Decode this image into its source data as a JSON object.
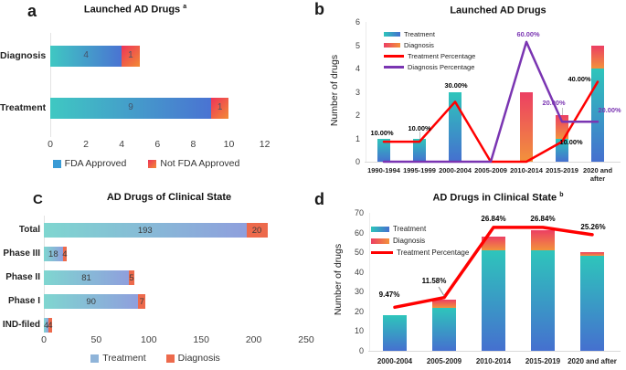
{
  "colors": {
    "red_line": "#ff0000",
    "purple_line": "#7a35b2",
    "bar_teal_top": "#2ec5bb",
    "bar_blue_bottom": "#4570cf",
    "bar_pink_top": "#ec3f63",
    "bar_orange_bottom": "#f2923c",
    "a_treat_left": "#3fc8c2",
    "a_treat_right": "#4a73d2",
    "a_not_left": "#ee3359",
    "a_not_right": "#f28b35",
    "c_treat_left": "#7fd6d0",
    "c_treat_right": "#8f9fdd",
    "c_diag": "#ed6a4c",
    "legend_a_fda": "#3a9bd5",
    "legend_c_treat": "#8fb4d9",
    "value_label": "#44546a",
    "axis_gray": "#d9d9d9"
  },
  "chart_data": [
    {
      "panel_label": "a",
      "type": "bar",
      "orientation": "horizontal",
      "title": "Launched AD Drugs",
      "title_superscript": "a",
      "categories": [
        "Diagnosis",
        "Treatment"
      ],
      "series": [
        {
          "name": "FDA Approved",
          "values": [
            4,
            9
          ]
        },
        {
          "name": "Not FDA Approved",
          "values": [
            1,
            1
          ]
        }
      ],
      "xlim": [
        0,
        12
      ],
      "xticks": [
        0,
        2,
        4,
        6,
        8,
        10,
        12
      ],
      "legend_position": "bottom"
    },
    {
      "panel_label": "b",
      "type": "combo-bar-line",
      "title": "Launched AD Drugs",
      "ylabel": "Number of drugs",
      "ylim": [
        0,
        6
      ],
      "yticks": [
        0,
        1,
        2,
        3,
        4,
        5,
        6
      ],
      "categories": [
        "1990-1994",
        "1995-1999",
        "2000-2004",
        "2005-2009",
        "2010-2014",
        "2015-2019",
        "2020 and after"
      ],
      "bar_series": [
        {
          "name": "Treatment",
          "values": [
            1,
            1,
            3,
            0,
            0,
            1,
            4
          ]
        },
        {
          "name": "Diagnosis",
          "values": [
            0,
            0,
            0,
            0,
            3,
            1,
            1
          ]
        }
      ],
      "line_series": [
        {
          "name": "Treatment Percentage",
          "color": "#ff0000",
          "label_color": "#000000",
          "percent": [
            10,
            10,
            30,
            0,
            0,
            10,
            40
          ],
          "point_labels": [
            "10.00%",
            "10.00%",
            "30.00%",
            "",
            "",
            "10.00%",
            "40.00%"
          ]
        },
        {
          "name": "Diagnosis Percentage",
          "color": "#7a35b2",
          "label_color": "#7a35b2",
          "percent": [
            0,
            0,
            0,
            0,
            60,
            20,
            20
          ],
          "point_labels": [
            "",
            "",
            "",
            "",
            "60.00%",
            "20.00%",
            "20.00%"
          ]
        }
      ],
      "secondary_axis_pct_range": [
        0,
        70
      ],
      "legend_position": "top-left-inside"
    },
    {
      "panel_label": "C",
      "type": "bar",
      "orientation": "horizontal",
      "title": "AD Drugs of Clinical State",
      "categories": [
        "Total",
        "Phase III",
        "Phase II",
        "Phase I",
        "IND-filed"
      ],
      "series": [
        {
          "name": "Treatment",
          "values": [
            193,
            18,
            81,
            90,
            4
          ]
        },
        {
          "name": "Diagnosis",
          "values": [
            20,
            4,
            5,
            7,
            4
          ]
        }
      ],
      "xlim": [
        0,
        250
      ],
      "xticks": [
        0,
        50,
        100,
        150,
        200,
        250
      ],
      "legend_position": "bottom"
    },
    {
      "panel_label": "d",
      "type": "combo-bar-line",
      "title": "AD Drugs in Clinical State",
      "title_superscript": "b",
      "ylabel": "Number of drugs",
      "ylim": [
        0,
        70
      ],
      "yticks": [
        0,
        10,
        20,
        30,
        40,
        50,
        60,
        70
      ],
      "categories": [
        "2000-2004",
        "2005-2009",
        "2010-2014",
        "2015-2019",
        "2020 and after"
      ],
      "bar_series": [
        {
          "name": "Treatment",
          "values": [
            18,
            22,
            51,
            51,
            48
          ]
        },
        {
          "name": "Diagnosis",
          "values": [
            0,
            4,
            7,
            10,
            2
          ]
        }
      ],
      "line_series": [
        {
          "name": "Treatment Percentage",
          "color": "#ff0000",
          "label_color": "#000000",
          "percent": [
            9.47,
            11.58,
            26.84,
            26.84,
            25.26
          ],
          "point_labels": [
            "9.47%",
            "11.58%",
            "26.84%",
            "26.84%",
            "25.26%"
          ]
        }
      ],
      "secondary_axis_pct_range": [
        0,
        30
      ],
      "legend_position": "top-left-inside"
    }
  ]
}
